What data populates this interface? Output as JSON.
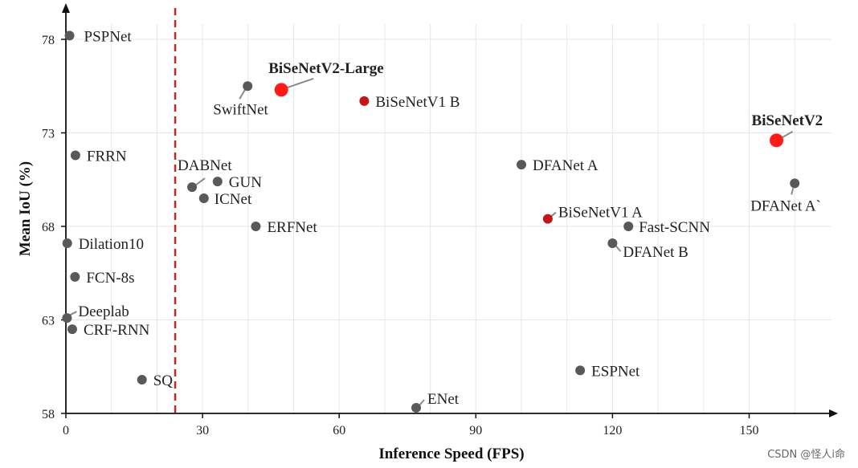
{
  "chart_data": {
    "type": "scatter",
    "xlabel": "Inference Speed (FPS)",
    "ylabel": "Mean IoU (%)",
    "xlim": [
      0,
      170
    ],
    "ylim": [
      58,
      79.5
    ],
    "xticks": [
      0,
      30,
      60,
      90,
      120,
      150
    ],
    "yticks": [
      58,
      63,
      68,
      73,
      78
    ],
    "realtime_threshold_fps": 24,
    "colors": {
      "default": "#595959",
      "highlight": "#ff1a1a",
      "highlight_dark": "#c01818",
      "threshold_line": "#c62828",
      "grid": "#e6e6e6"
    },
    "points": [
      {
        "name": "PSPNet",
        "x": 0.8,
        "y": 78.2,
        "style": "default"
      },
      {
        "name": "FRRN",
        "x": 2.1,
        "y": 71.8,
        "style": "default"
      },
      {
        "name": "Dilation10",
        "x": 0.3,
        "y": 67.1,
        "style": "default"
      },
      {
        "name": "FCN-8s",
        "x": 2.0,
        "y": 65.3,
        "style": "default"
      },
      {
        "name": "Deeplab",
        "x": 0.25,
        "y": 63.1,
        "style": "default"
      },
      {
        "name": "CRF-RNN",
        "x": 1.4,
        "y": 62.5,
        "style": "default"
      },
      {
        "name": "SQ",
        "x": 16.7,
        "y": 59.8,
        "style": "default"
      },
      {
        "name": "DABNet",
        "x": 27.7,
        "y": 70.1,
        "style": "default"
      },
      {
        "name": "GUN",
        "x": 33.3,
        "y": 70.4,
        "style": "default"
      },
      {
        "name": "ICNet",
        "x": 30.3,
        "y": 69.5,
        "style": "default"
      },
      {
        "name": "ERFNet",
        "x": 41.7,
        "y": 68.0,
        "style": "default"
      },
      {
        "name": "SwiftNet",
        "x": 39.9,
        "y": 75.5,
        "style": "default"
      },
      {
        "name": "BiSeNetV2-Large",
        "x": 47.3,
        "y": 75.3,
        "style": "highlight"
      },
      {
        "name": "BiSeNetV1 B",
        "x": 65.5,
        "y": 74.7,
        "style": "highlight_dark"
      },
      {
        "name": "ENet",
        "x": 76.9,
        "y": 58.3,
        "style": "default"
      },
      {
        "name": "DFANet A",
        "x": 100,
        "y": 71.3,
        "style": "default"
      },
      {
        "name": "BiSeNetV1 A",
        "x": 105.8,
        "y": 68.4,
        "style": "highlight_dark"
      },
      {
        "name": "ESPNet",
        "x": 112.9,
        "y": 60.3,
        "style": "default"
      },
      {
        "name": "DFANet B",
        "x": 120,
        "y": 67.1,
        "style": "default"
      },
      {
        "name": "Fast-SCNN",
        "x": 123.5,
        "y": 68.0,
        "style": "default"
      },
      {
        "name": "BiSeNetV2",
        "x": 156,
        "y": 72.6,
        "style": "highlight"
      },
      {
        "name": "DFANet A`",
        "x": 160,
        "y": 70.3,
        "style": "default"
      }
    ]
  },
  "watermark": "CSDN @怪人i命"
}
